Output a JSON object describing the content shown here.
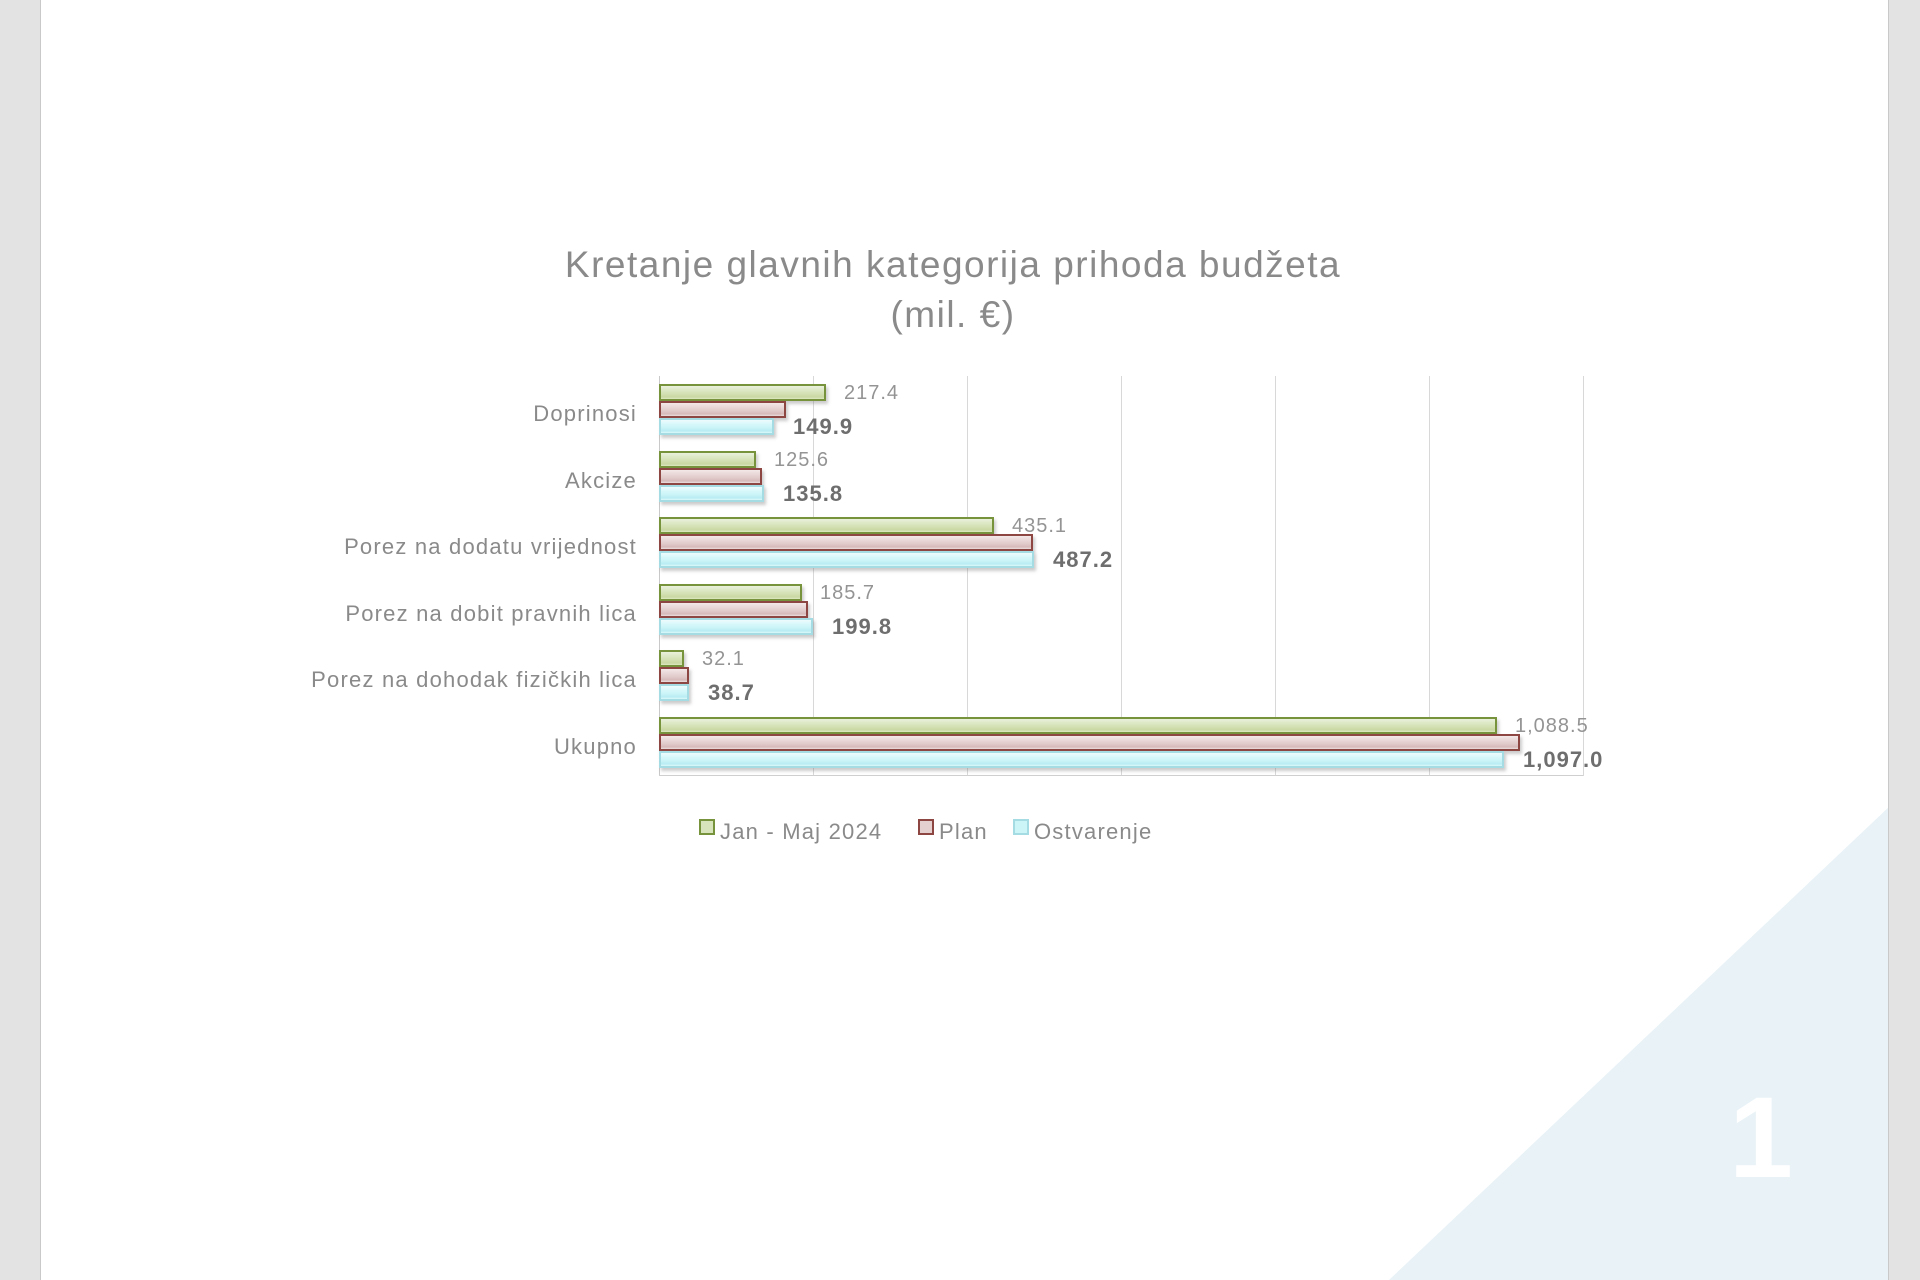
{
  "slide": {
    "page_number": "1",
    "background_color": "#ffffff",
    "margin_color": "#e3e3e3",
    "corner_triangle_color": "#e8f2f7"
  },
  "chart": {
    "title_line1": "Kretanje glavnih kategorija prihoda budžeta",
    "title_line2": "(mil. €)",
    "title_color": "#8a8a8a"
  },
  "chart_data": {
    "type": "bar",
    "orientation": "horizontal",
    "title": "Kretanje glavnih kategorija prihoda budžeta (mil. €)",
    "categories": [
      "Doprinosi",
      "Akcize",
      "Porez na dodatu vrijednost",
      "Porez na dobit pravnih lica",
      "Porez na dohodak fizičkih lica",
      "Ukupno"
    ],
    "series": [
      {
        "name": "Jan - Maj 2024",
        "fill_color": "#d8e4bc",
        "border_color": "#77933c",
        "values": [
          217.4,
          125.6,
          435.1,
          185.7,
          32.1,
          1088.5
        ],
        "labels": [
          "217.4",
          "125.6",
          "435.1",
          "185.7",
          "32.1",
          "1,088.5"
        ],
        "labels_shown": true,
        "label_style": "regular"
      },
      {
        "name": "Plan",
        "fill_color": "#e5d0d0",
        "border_color": "#8e4642",
        "values": [
          165,
          134,
          486,
          193,
          39,
          1118
        ],
        "values_estimated_from_bar_length": true,
        "labels_shown": false
      },
      {
        "name": "Ostvarenje",
        "fill_color": "#ccf5f8",
        "border_color": "#a5dce4",
        "values": [
          149.9,
          135.8,
          487.2,
          199.8,
          38.7,
          1097.0
        ],
        "labels": [
          "149.9",
          "135.8",
          "487.2",
          "199.8",
          "38.7",
          "1,097.0"
        ],
        "labels_shown": true,
        "label_style": "bold"
      }
    ],
    "xlim": [
      0,
      1200
    ],
    "gridline_step": 200,
    "grid": "vertical-lines",
    "axis_tick_labels_shown": false,
    "legend_position": "bottom"
  }
}
